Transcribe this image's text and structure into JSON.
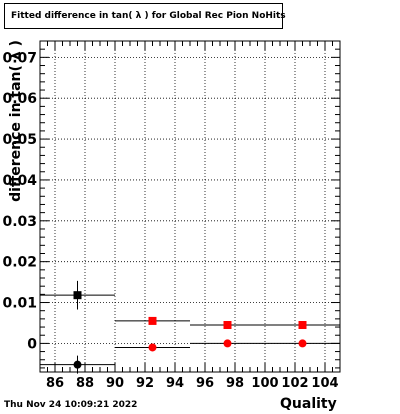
{
  "chart_data": {
    "type": "scatter",
    "title": "Fitted difference in tan( λ ) for Global Rec Pion NoHits",
    "xlabel": "Quality",
    "ylabel": "difference in tan( λ )",
    "xlim": [
      85,
      105
    ],
    "ylim": [
      -0.007,
      0.074
    ],
    "xticks_labeled": [
      86,
      88,
      90,
      92,
      94,
      96,
      98,
      100,
      102,
      104
    ],
    "xtick_labels": [
      "86",
      "88",
      "90",
      "92",
      "94",
      "96",
      "98",
      "100",
      "102",
      "104"
    ],
    "yticks_labeled": [
      0,
      0.01,
      0.02,
      0.03,
      0.04,
      0.05,
      0.06,
      0.07
    ],
    "ytick_labels": [
      "0",
      "0.01",
      "0.02",
      "0.03",
      "0.04",
      "0.05",
      "0.06",
      "0.07"
    ],
    "grid": true,
    "series": [
      {
        "marker": "square",
        "color": "#000000",
        "points": [
          {
            "x": 87.5,
            "xerr": 2.5,
            "y": 0.0118,
            "yerr": 0.0035
          }
        ]
      },
      {
        "marker": "circle",
        "color": "#000000",
        "points": [
          {
            "x": 87.5,
            "xerr": 2.5,
            "y": -0.0052,
            "yerr": 0.0022
          }
        ]
      },
      {
        "marker": "square",
        "color": "#ff0000",
        "points": [
          {
            "x": 92.5,
            "xerr": 2.5,
            "y": 0.0055,
            "yerr": 0.0003
          },
          {
            "x": 97.5,
            "xerr": 2.5,
            "y": 0.0045,
            "yerr": 0.0002
          },
          {
            "x": 102.5,
            "xerr": 2.5,
            "y": 0.0045,
            "yerr": 0.0002
          }
        ]
      },
      {
        "marker": "circle",
        "color": "#ff0000",
        "points": [
          {
            "x": 92.5,
            "xerr": 2.5,
            "y": -0.001,
            "yerr": 0.0003
          },
          {
            "x": 97.5,
            "xerr": 2.5,
            "y": 0.0,
            "yerr": 0.0002
          },
          {
            "x": 102.5,
            "xerr": 2.5,
            "y": 0.0,
            "yerr": 0.0002
          }
        ]
      }
    ]
  },
  "footer": {
    "date": "Thu Nov 24 10:09:21 2022"
  }
}
